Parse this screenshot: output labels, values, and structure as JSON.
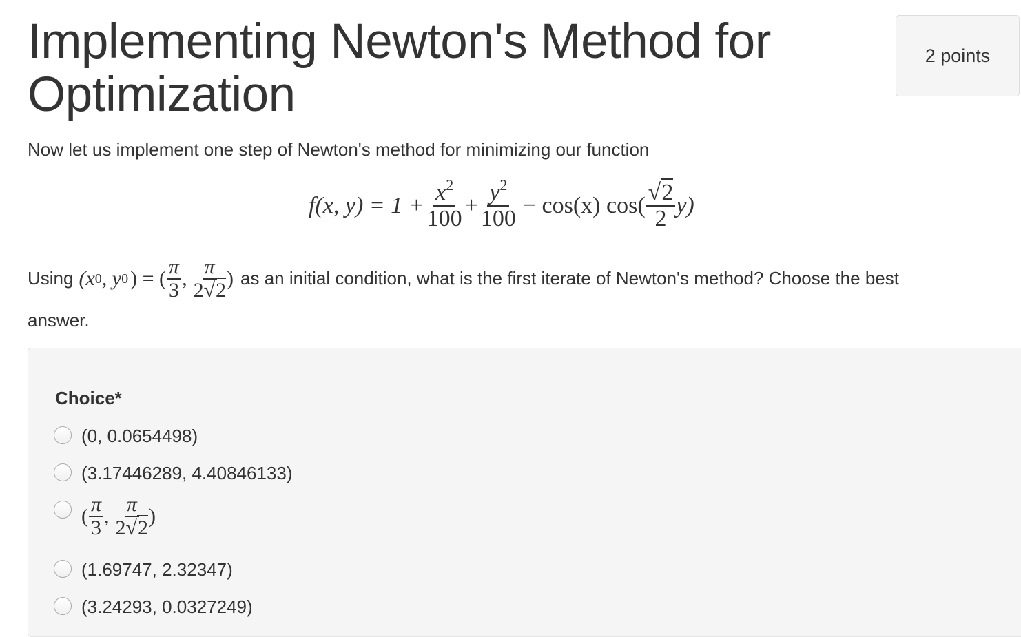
{
  "header": {
    "title": "Implementing Newton's Method for Optimization",
    "points": "2 points"
  },
  "question": {
    "intro": "Now let us implement one step of Newton's method for minimizing our function",
    "formula": {
      "lhs": "f(x, y) = 1 +",
      "frac1_num": "x",
      "frac1_exp": "2",
      "frac1_den": "100",
      "plus": "+",
      "frac2_num": "y",
      "frac2_exp": "2",
      "frac2_den": "100",
      "minus_cos": "− cos(x) cos(",
      "frac3_num_root": "√",
      "frac3_num": "2",
      "frac3_den": "2",
      "tail": "y)"
    },
    "using_prefix": "Using",
    "initial": {
      "lhs_open": "(x",
      "sub0a": "0",
      "comma": ", y",
      "sub0b": "0",
      "eq": ") = (",
      "f1_num": "π",
      "f1_den": "3",
      "sep": ",",
      "f2_num": "π",
      "f2_den_a": "2",
      "f2_den_root": "√",
      "f2_den_b": "2",
      "close": ")"
    },
    "using_suffix": "as an initial condition, what is the first iterate of Newton's method? Choose the best",
    "answer_word": "answer."
  },
  "choices": {
    "label": "Choice*",
    "options": [
      {
        "text": "(0, 0.0654498)",
        "selected": false
      },
      {
        "text": "(3.17446289, 4.40846133)",
        "selected": false
      },
      {
        "text": "(π/3, π/(2√2))",
        "selected": false,
        "math": {
          "open": "(",
          "f1_num": "π",
          "f1_den": "3",
          "sep": ",",
          "f2_num": "π",
          "f2_den_a": "2",
          "f2_den_root": "√",
          "f2_den_b": "2",
          "close": ")"
        }
      },
      {
        "text": "(1.69747, 2.32347)",
        "selected": false
      },
      {
        "text": "(3.24293, 0.0327249)",
        "selected": false
      }
    ]
  }
}
